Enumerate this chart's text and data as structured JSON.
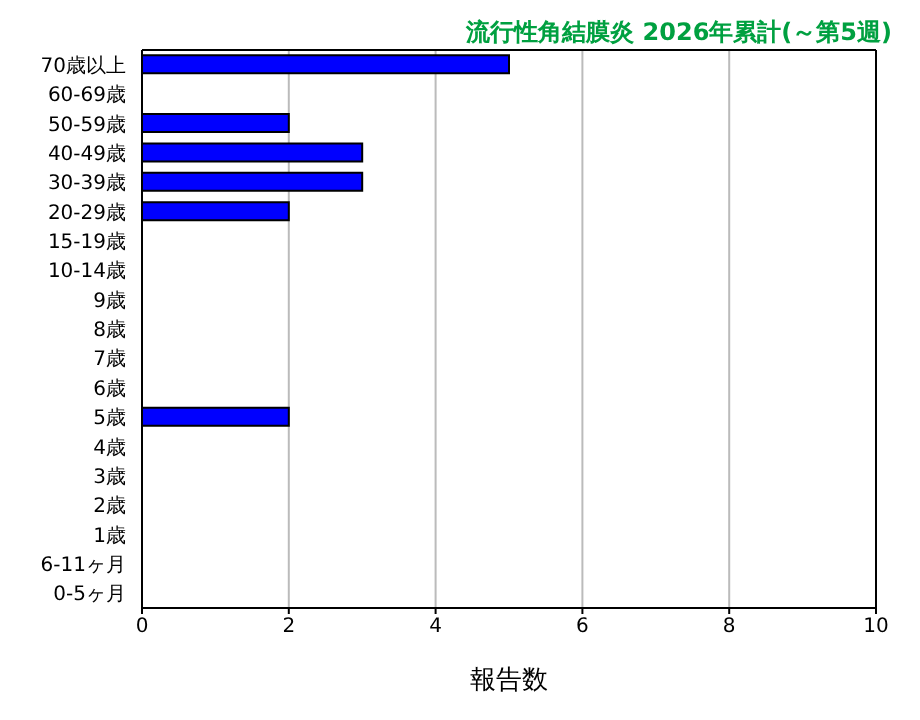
{
  "chart_data": {
    "type": "bar",
    "orientation": "horizontal",
    "title": "流行性角結膜炎 2026年累計(～第5週)",
    "xlabel": "報告数",
    "categories": [
      "70歳以上",
      "60-69歳",
      "50-59歳",
      "40-49歳",
      "30-39歳",
      "20-29歳",
      "15-19歳",
      "10-14歳",
      "9歳",
      "8歳",
      "7歳",
      "6歳",
      "5歳",
      "4歳",
      "3歳",
      "2歳",
      "1歳",
      "6-11ヶ月",
      "0-5ヶ月"
    ],
    "values": [
      5,
      0,
      2,
      3,
      3,
      2,
      0,
      0,
      0,
      0,
      0,
      0,
      2,
      0,
      0,
      0,
      0,
      0,
      0
    ],
    "color": "#0000ff",
    "xlim": [
      0,
      10
    ],
    "xticks": [
      0,
      2,
      4,
      6,
      8,
      10
    ],
    "grid": "x"
  }
}
